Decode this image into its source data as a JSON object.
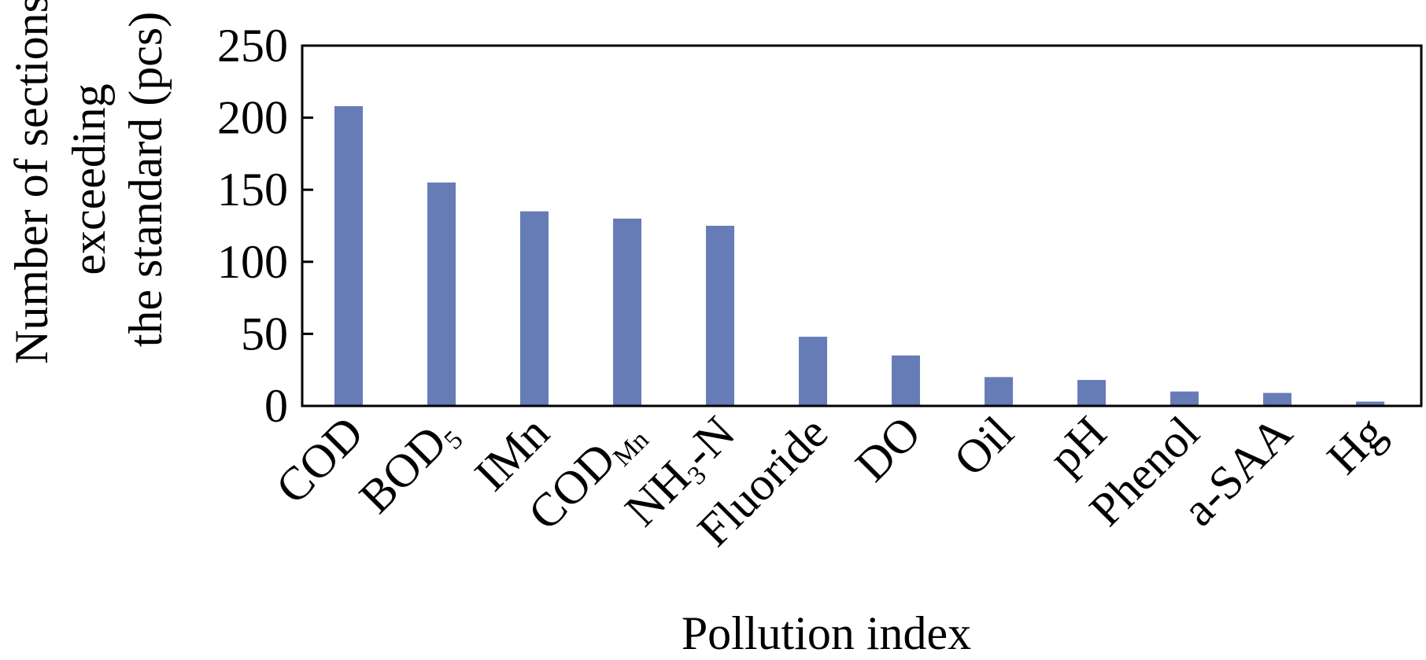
{
  "chart_data": {
    "type": "bar",
    "xlabel": "Pollution index",
    "ylabel": "Number of sections exceeding the standard (pcs)",
    "ylabel_lines": [
      "Number of sections",
      "exceeding",
      "the standard (pcs)"
    ],
    "ylim": [
      0,
      250
    ],
    "yticks": [
      0,
      50,
      100,
      150,
      200,
      250
    ],
    "grid": false,
    "legend": "none",
    "bar_color": "#667cb6",
    "categories": [
      {
        "base": "COD",
        "sub": ""
      },
      {
        "base": "BOD",
        "sub": "5"
      },
      {
        "base": "IMn",
        "sub": ""
      },
      {
        "base": "COD",
        "sub": "Mn"
      },
      {
        "base": "NH",
        "sub": "3",
        "tail": "-N"
      },
      {
        "base": "Fluoride",
        "sub": ""
      },
      {
        "base": "DO",
        "sub": ""
      },
      {
        "base": "Oil",
        "sub": ""
      },
      {
        "base": "pH",
        "sub": ""
      },
      {
        "base": "Phenol",
        "sub": ""
      },
      {
        "base": "a-SAA",
        "sub": ""
      },
      {
        "base": "Hg",
        "sub": ""
      }
    ],
    "values": [
      208,
      155,
      135,
      130,
      125,
      48,
      35,
      20,
      18,
      10,
      9,
      3
    ]
  }
}
